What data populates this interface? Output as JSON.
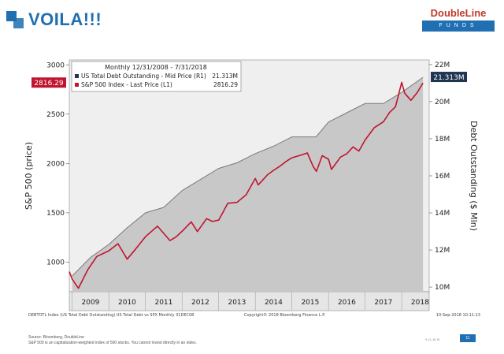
{
  "slide": {
    "title": "VOILA!!!",
    "logo_top": "DoubleLine",
    "logo_bottom": "FUNDS",
    "source_line1": "Source: Bloomberg, DoubleLine",
    "source_line2": "S&P 500 is an capitalization-weighted index of 500 stocks. You cannot invest directly in an index.",
    "page_number": "11",
    "footer_code": "9-11-18 SI"
  },
  "colors": {
    "accent": "#1f6fb2",
    "sp500_line": "#c0152f",
    "debt_fill": "#c8c8c8",
    "debt_edge": "#7a7a7a",
    "plot_bg": "#efefef"
  },
  "chart_data": {
    "type": "line",
    "legend": {
      "header": "Monthly 12/31/2008 - 7/31/2018",
      "items": [
        {
          "label": "US Total Debt Outstanding - Mid Price (R1)",
          "value": "21.313M"
        },
        {
          "label": "S&P 500 Index - Last Price (L1)",
          "value": "2816.29"
        }
      ]
    },
    "ylabel_left": "S&P 500 (price)",
    "ylabel_right": "Debt Outstanding ($ Mln)",
    "ylim_left": [
      700,
      3050
    ],
    "ylim_right": [
      9.75,
      22.25
    ],
    "yticks_left": [
      "1000",
      "1500",
      "2000",
      "2500",
      "3000"
    ],
    "yticks_right": [
      "10M",
      "12M",
      "14M",
      "16M",
      "18M",
      "20M",
      "22M"
    ],
    "xticks": [
      "2009",
      "2010",
      "2011",
      "2012",
      "2013",
      "2014",
      "2015",
      "2016",
      "2017",
      "2018"
    ],
    "last_label_left": "2816.29",
    "last_label_right": "21.313M",
    "series": [
      {
        "name": "US Total Debt Outstanding - Mid Price (R1)",
        "axis": "right",
        "x": [
          2009.0,
          2009.5,
          2010.0,
          2010.5,
          2011.0,
          2011.5,
          2012.0,
          2012.5,
          2013.0,
          2013.5,
          2014.0,
          2014.5,
          2015.0,
          2015.33,
          2015.66,
          2016.0,
          2016.5,
          2017.0,
          2017.5,
          2018.0,
          2018.58
        ],
        "values": [
          10.6,
          11.6,
          12.3,
          13.2,
          14.0,
          14.3,
          15.2,
          15.8,
          16.4,
          16.7,
          17.2,
          17.6,
          18.1,
          18.1,
          18.1,
          18.9,
          19.4,
          19.9,
          19.9,
          20.5,
          21.31
        ]
      },
      {
        "name": "S&P 500 Index - Last Price (L1)",
        "axis": "left",
        "x": [
          2008.92,
          2009.0,
          2009.17,
          2009.42,
          2009.67,
          2010.0,
          2010.25,
          2010.5,
          2010.75,
          2011.0,
          2011.33,
          2011.67,
          2011.83,
          2012.0,
          2012.25,
          2012.42,
          2012.67,
          2012.83,
          2013.0,
          2013.25,
          2013.5,
          2013.75,
          2014.0,
          2014.08,
          2014.33,
          2014.5,
          2014.67,
          2014.83,
          2015.0,
          2015.25,
          2015.42,
          2015.58,
          2015.67,
          2015.83,
          2016.0,
          2016.08,
          2016.33,
          2016.5,
          2016.67,
          2016.83,
          2017.0,
          2017.25,
          2017.5,
          2017.67,
          2017.83,
          2018.0,
          2018.08,
          2018.25,
          2018.42,
          2018.58
        ],
        "values": [
          903,
          826,
          735,
          919,
          1057,
          1115,
          1187,
          1030,
          1141,
          1258,
          1364,
          1219,
          1254,
          1312,
          1408,
          1310,
          1441,
          1412,
          1426,
          1597,
          1606,
          1682,
          1848,
          1782,
          1884,
          1931,
          1972,
          2018,
          2058,
          2085,
          2107,
          1972,
          1920,
          2080,
          2043,
          1940,
          2065,
          2099,
          2168,
          2126,
          2238,
          2363,
          2423,
          2519,
          2575,
          2823,
          2713,
          2640,
          2718,
          2816
        ]
      }
    ]
  },
  "bloomberg": {
    "footer_left": "DEBTOTL Index (US Total Debt Outstanding) US Total Debt vs SPX   Monthly 31DEC08",
    "footer_mid": "Copyright© 2018 Bloomberg Finance L.P.",
    "footer_right": "10-Sep-2018 10:11:13"
  }
}
